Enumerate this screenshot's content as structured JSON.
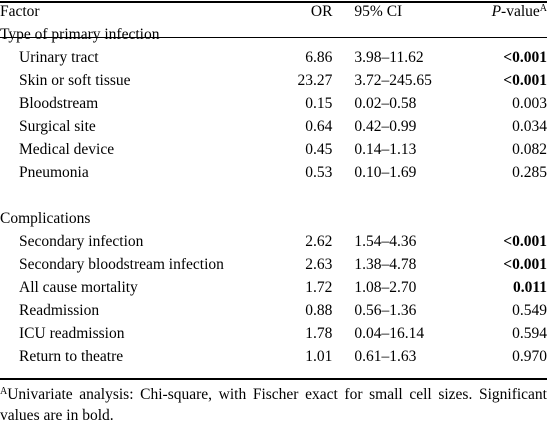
{
  "header": {
    "factor": "Factor",
    "or": "OR",
    "ci": "95% CI",
    "p_label": "P",
    "p_suffix": "-value",
    "p_sup": "A"
  },
  "sections": [
    {
      "title": "Type of primary infection",
      "rows": [
        {
          "factor": "Urinary tract",
          "or": "6.86",
          "ci": "3.98–11.62",
          "p": "<0.001",
          "sig": true
        },
        {
          "factor": "Skin or soft tissue",
          "or": "23.27",
          "ci": "3.72–245.65",
          "p": "<0.001",
          "sig": true
        },
        {
          "factor": "Bloodstream",
          "or": "0.15",
          "ci": "0.02–0.58",
          "p": "0.003",
          "sig": false
        },
        {
          "factor": "Surgical site",
          "or": "0.64",
          "ci": "0.42–0.99",
          "p": "0.034",
          "sig": false
        },
        {
          "factor": "Medical device",
          "or": "0.45",
          "ci": "0.14–1.13",
          "p": "0.082",
          "sig": false
        },
        {
          "factor": "Pneumonia",
          "or": "0.53",
          "ci": "0.10–1.69",
          "p": "0.285",
          "sig": false
        }
      ]
    },
    {
      "title": "Complications",
      "rows": [
        {
          "factor": "Secondary infection",
          "or": "2.62",
          "ci": "1.54–4.36",
          "p": "<0.001",
          "sig": true
        },
        {
          "factor": "Secondary bloodstream infection",
          "or": "2.63",
          "ci": "1.38–4.78",
          "p": "<0.001",
          "sig": true
        },
        {
          "factor": "All cause mortality",
          "or": "1.72",
          "ci": "1.08–2.70",
          "p": "0.011",
          "sig": true
        },
        {
          "factor": "Readmission",
          "or": "0.88",
          "ci": "0.56–1.36",
          "p": "0.549",
          "sig": false
        },
        {
          "factor": "ICU readmission",
          "or": "1.78",
          "ci": "0.04–16.14",
          "p": "0.594",
          "sig": false
        },
        {
          "factor": "Return to theatre",
          "or": "1.01",
          "ci": "0.61–1.63",
          "p": "0.970",
          "sig": false
        }
      ]
    }
  ],
  "footnote": {
    "sup": "A",
    "text": "Univariate analysis: Chi-square, with Fischer exact for small cell sizes. Significant values are in bold."
  }
}
